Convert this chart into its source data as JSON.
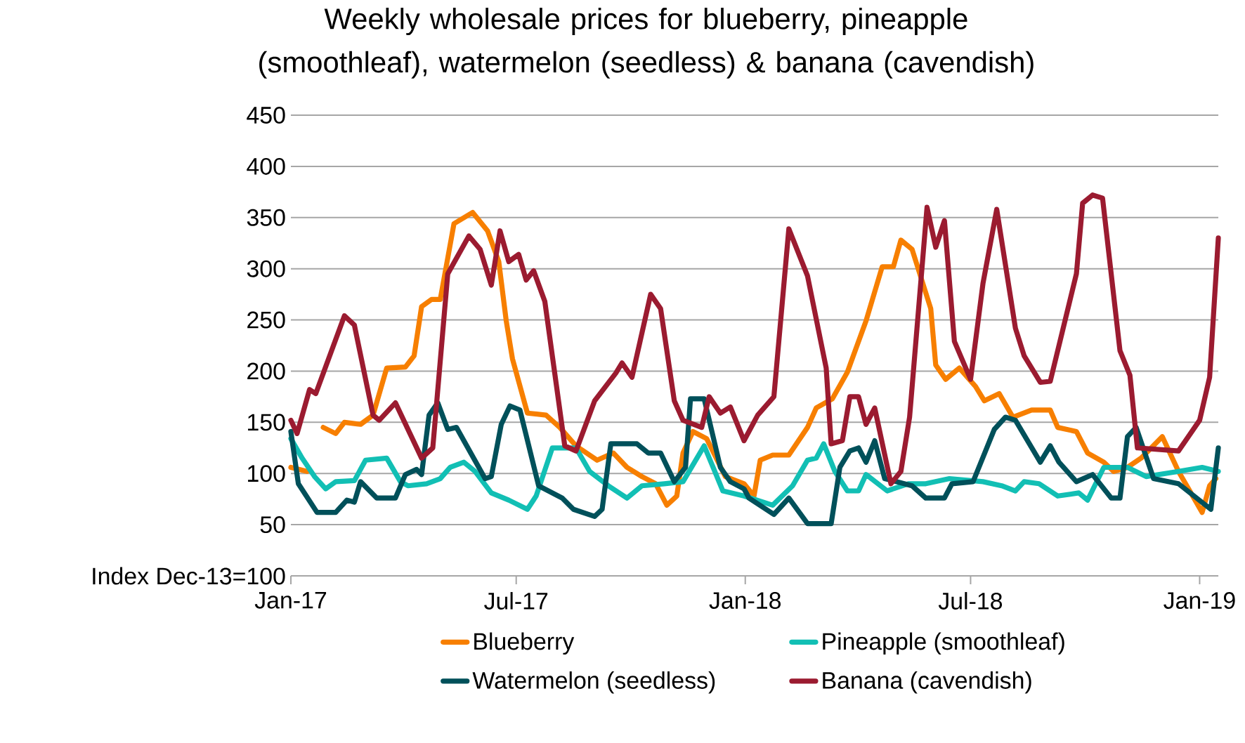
{
  "chart_data": {
    "type": "line",
    "title": "Weekly wholesale prices for blueberry, pineapple (smoothleaf), watermelon (seedless) & banana (cavendish)",
    "xlim": [
      "2017-01-01",
      "2019-01-16"
    ],
    "xticks": [
      {
        "value": "2017-01-01",
        "label": "Jan-17"
      },
      {
        "value": "2017-07-01",
        "label": "Jul-17"
      },
      {
        "value": "2018-01-01",
        "label": "Jan-18"
      },
      {
        "value": "2018-07-01",
        "label": "Jul-18"
      },
      {
        "value": "2019-01-01",
        "label": "Jan-19"
      }
    ],
    "ylim": [
      0,
      450
    ],
    "yticks": [
      {
        "value": 0,
        "label": "Index Dec-13=100"
      },
      50,
      100,
      150,
      200,
      250,
      300,
      350,
      400,
      450
    ],
    "grid": "y",
    "legend": "bottom",
    "series": [
      {
        "name": "Blueberry",
        "color": "#f77f00",
        "x": [
          "2017-01-01",
          "2017-01-14",
          "2017-01-20",
          "2017-01-27",
          "2017-02-06",
          "2017-02-13",
          "2017-02-26",
          "2017-03-08",
          "2017-03-19",
          "2017-04-03",
          "2017-04-10",
          "2017-04-16",
          "2017-04-24",
          "2017-05-01",
          "2017-05-12",
          "2017-05-27",
          "2017-06-08",
          "2017-06-17",
          "2017-06-23",
          "2017-06-28",
          "2017-07-10",
          "2017-07-25",
          "2017-08-05",
          "2017-08-18",
          "2017-09-04",
          "2017-09-17",
          "2017-09-28",
          "2017-10-10",
          "2017-10-21",
          "2017-10-30",
          "2017-11-07",
          "2017-11-12",
          "2017-11-20",
          "2017-12-01",
          "2017-12-16",
          "2017-12-31",
          "2018-01-08",
          "2018-01-13",
          "2018-01-23",
          "2018-02-05",
          "2018-02-20",
          "2018-02-27",
          "2018-03-12",
          "2018-03-24",
          "2018-04-08",
          "2018-04-21",
          "2018-04-30",
          "2018-05-06",
          "2018-05-15",
          "2018-05-30",
          "2018-06-03",
          "2018-06-11",
          "2018-06-22",
          "2018-07-05",
          "2018-07-12",
          "2018-07-24",
          "2018-08-04",
          "2018-08-19",
          "2018-09-03",
          "2018-09-09",
          "2018-09-24",
          "2018-10-03",
          "2018-10-16",
          "2018-10-24",
          "2018-11-04",
          "2018-11-15",
          "2018-12-02",
          "2018-12-15",
          "2019-01-03",
          "2019-01-09",
          "2019-01-14"
        ],
        "values": [
          106,
          102,
          null,
          145,
          139,
          150,
          148,
          157,
          203,
          204,
          215,
          263,
          270,
          270,
          344,
          355,
          337,
          307,
          249,
          212,
          159,
          157,
          145,
          127,
          113,
          120,
          106,
          97,
          90,
          69,
          78,
          120,
          141,
          134,
          97,
          90,
          78,
          113,
          118,
          118,
          145,
          164,
          173,
          199,
          249,
          302,
          302,
          328,
          319,
          261,
          206,
          192,
          203,
          185,
          171,
          178,
          155,
          162,
          162,
          145,
          141,
          120,
          111,
          102,
          106,
          115,
          136,
          102,
          62,
          88,
          95
        ]
      },
      {
        "name": "Pineapple (smoothleaf)",
        "color": "#12bfb4",
        "x": [
          "2017-01-01",
          "2017-01-10",
          "2017-01-20",
          "2017-01-29",
          "2017-02-06",
          "2017-02-21",
          "2017-03-02",
          "2017-03-19",
          "2017-03-30",
          "2017-04-05",
          "2017-04-20",
          "2017-05-01",
          "2017-05-09",
          "2017-05-20",
          "2017-05-29",
          "2017-06-11",
          "2017-06-25",
          "2017-07-10",
          "2017-07-17",
          "2017-07-30",
          "2017-08-18",
          "2017-08-29",
          "2017-09-13",
          "2017-09-28",
          "2017-10-10",
          "2017-10-28",
          "2017-11-12",
          "2017-11-29",
          "2017-12-14",
          "2017-12-31",
          "2018-01-23",
          "2018-02-08",
          "2018-02-20",
          "2018-02-27",
          "2018-03-05",
          "2018-03-14",
          "2018-03-24",
          "2018-04-02",
          "2018-04-08",
          "2018-04-25",
          "2018-05-12",
          "2018-05-26",
          "2018-06-14",
          "2018-07-11",
          "2018-07-26",
          "2018-08-06",
          "2018-08-13",
          "2018-08-25",
          "2018-09-09",
          "2018-09-26",
          "2018-10-03",
          "2018-10-16",
          "2018-11-04",
          "2018-11-19",
          "2018-12-15",
          "2019-01-03",
          "2019-01-16"
        ],
        "values": [
          134,
          115,
          97,
          85,
          92,
          93,
          113,
          115,
          92,
          88,
          90,
          95,
          106,
          111,
          102,
          81,
          74,
          65,
          78,
          125,
          125,
          102,
          88,
          76,
          88,
          90,
          92,
          127,
          83,
          78,
          69,
          88,
          113,
          115,
          129,
          102,
          83,
          83,
          99,
          83,
          90,
          90,
          95,
          92,
          88,
          83,
          92,
          90,
          78,
          81,
          74,
          106,
          106,
          97,
          102,
          106,
          102
        ]
      },
      {
        "name": "Watermelon (seedless)",
        "color": "#00505a",
        "x": [
          "2017-01-01",
          "2017-01-07",
          "2017-01-22",
          "2017-02-06",
          "2017-02-15",
          "2017-02-21",
          "2017-02-26",
          "2017-03-11",
          "2017-03-26",
          "2017-04-03",
          "2017-04-12",
          "2017-04-16",
          "2017-04-22",
          "2017-04-29",
          "2017-05-07",
          "2017-05-14",
          "2017-06-06",
          "2017-06-11",
          "2017-06-19",
          "2017-06-26",
          "2017-07-04",
          "2017-07-19",
          "2017-08-07",
          "2017-08-16",
          "2017-09-02",
          "2017-09-08",
          "2017-09-15",
          "2017-10-06",
          "2017-10-15",
          "2017-10-25",
          "2017-11-05",
          "2017-11-14",
          "2017-11-18",
          "2017-11-29",
          "2017-12-12",
          "2017-12-20",
          "2017-12-31",
          "2018-01-04",
          "2018-01-24",
          "2018-02-05",
          "2018-02-20",
          "2018-03-11",
          "2018-03-18",
          "2018-03-26",
          "2018-04-02",
          "2018-04-08",
          "2018-04-15",
          "2018-04-23",
          "2018-05-15",
          "2018-05-26",
          "2018-06-10",
          "2018-06-16",
          "2018-07-03",
          "2018-07-20",
          "2018-07-29",
          "2018-08-06",
          "2018-08-26",
          "2018-09-03",
          "2018-09-10",
          "2018-09-24",
          "2018-10-07",
          "2018-10-22",
          "2018-10-29",
          "2018-11-04",
          "2018-11-11",
          "2018-11-25",
          "2018-12-15",
          "2019-01-10",
          "2019-01-16"
        ],
        "values": [
          141,
          90,
          62,
          62,
          74,
          72,
          92,
          76,
          76,
          99,
          104,
          99,
          157,
          169,
          143,
          145,
          95,
          97,
          148,
          166,
          162,
          88,
          76,
          65,
          58,
          65,
          129,
          129,
          120,
          120,
          92,
          106,
          173,
          173,
          106,
          92,
          85,
          76,
          60,
          76,
          51,
          51,
          106,
          122,
          125,
          111,
          132,
          95,
          88,
          76,
          76,
          90,
          92,
          143,
          155,
          152,
          111,
          127,
          111,
          92,
          99,
          76,
          76,
          136,
          145,
          95,
          90,
          65,
          125
        ]
      },
      {
        "name": "Banana (cavendish)",
        "color": "#9b1b30",
        "x": [
          "2017-01-01",
          "2017-01-06",
          "2017-01-16",
          "2017-01-21",
          "2017-02-13",
          "2017-02-21",
          "2017-03-08",
          "2017-03-13",
          "2017-03-26",
          "2017-04-16",
          "2017-04-25",
          "2017-05-07",
          "2017-05-24",
          "2017-06-02",
          "2017-06-11",
          "2017-06-18",
          "2017-06-25",
          "2017-07-03",
          "2017-07-09",
          "2017-07-15",
          "2017-07-24",
          "2017-08-09",
          "2017-08-18",
          "2017-09-02",
          "2017-09-19",
          "2017-09-24",
          "2017-10-02",
          "2017-10-17",
          "2017-10-25",
          "2017-11-05",
          "2017-11-12",
          "2017-11-27",
          "2017-12-03",
          "2017-12-12",
          "2017-12-20",
          "2017-12-31",
          "2018-01-11",
          "2018-01-24",
          "2018-02-05",
          "2018-02-20",
          "2018-03-07",
          "2018-03-11",
          "2018-03-20",
          "2018-03-26",
          "2018-04-02",
          "2018-04-08",
          "2018-04-15",
          "2018-04-28",
          "2018-05-06",
          "2018-05-13",
          "2018-05-27",
          "2018-06-03",
          "2018-06-10",
          "2018-06-18",
          "2018-07-01",
          "2018-07-11",
          "2018-07-22",
          "2018-08-06",
          "2018-08-13",
          "2018-08-26",
          "2018-09-03",
          "2018-09-24",
          "2018-09-29",
          "2018-10-07",
          "2018-10-15",
          "2018-10-29",
          "2018-11-06",
          "2018-11-12",
          "2018-12-15",
          "2019-01-01",
          "2019-01-09",
          "2019-01-16"
        ],
        "values": [
          152,
          139,
          182,
          178,
          254,
          245,
          157,
          152,
          169,
          115,
          125,
          295,
          332,
          319,
          284,
          337,
          307,
          314,
          289,
          298,
          268,
          127,
          122,
          171,
          198,
          208,
          194,
          275,
          261,
          171,
          152,
          145,
          175,
          159,
          165,
          132,
          157,
          175,
          339,
          293,
          203,
          129,
          132,
          175,
          175,
          148,
          164,
          90,
          102,
          155,
          360,
          321,
          347,
          229,
          192,
          286,
          358,
          242,
          215,
          189,
          190,
          295,
          364,
          372,
          369,
          220,
          196,
          125,
          122,
          152,
          194,
          330
        ]
      }
    ]
  }
}
